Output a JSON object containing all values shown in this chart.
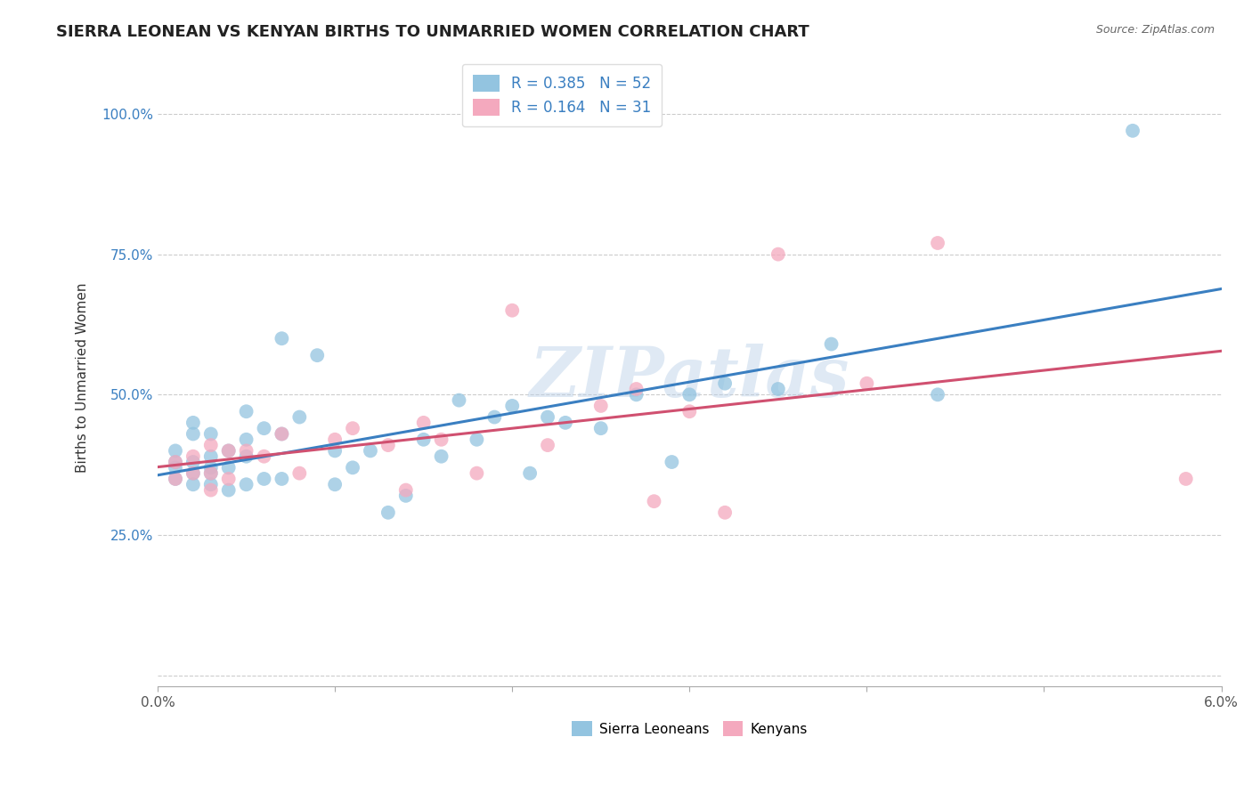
{
  "title": "SIERRA LEONEAN VS KENYAN BIRTHS TO UNMARRIED WOMEN CORRELATION CHART",
  "source": "Source: ZipAtlas.com",
  "ylabel": "Births to Unmarried Women",
  "xlabel": "",
  "xlim": [
    0.0,
    0.06
  ],
  "ylim": [
    -0.02,
    1.08
  ],
  "xticks": [
    0.0,
    0.01,
    0.02,
    0.03,
    0.04,
    0.05,
    0.06
  ],
  "xticklabels": [
    "0.0%",
    "",
    "",
    "",
    "",
    "",
    "6.0%"
  ],
  "yticks": [
    0.0,
    0.25,
    0.5,
    0.75,
    1.0
  ],
  "yticklabels": [
    "",
    "25.0%",
    "50.0%",
    "75.0%",
    "100.0%"
  ],
  "sierra_R": 0.385,
  "sierra_N": 52,
  "kenyan_R": 0.164,
  "kenyan_N": 31,
  "sierra_color": "#93C4E0",
  "kenyan_color": "#F4A9BE",
  "sierra_line_color": "#3a7fc1",
  "kenyan_line_color": "#d05070",
  "legend_text_color": "#3a7fc1",
  "watermark": "ZIPatlas",
  "sierra_x": [
    0.001,
    0.001,
    0.001,
    0.001,
    0.002,
    0.002,
    0.002,
    0.002,
    0.002,
    0.003,
    0.003,
    0.003,
    0.003,
    0.003,
    0.004,
    0.004,
    0.004,
    0.005,
    0.005,
    0.005,
    0.005,
    0.006,
    0.006,
    0.007,
    0.007,
    0.007,
    0.008,
    0.009,
    0.01,
    0.01,
    0.011,
    0.012,
    0.013,
    0.014,
    0.015,
    0.016,
    0.017,
    0.018,
    0.019,
    0.02,
    0.021,
    0.022,
    0.023,
    0.025,
    0.027,
    0.029,
    0.03,
    0.032,
    0.035,
    0.038,
    0.044,
    0.055
  ],
  "sierra_y": [
    0.35,
    0.37,
    0.38,
    0.4,
    0.34,
    0.36,
    0.38,
    0.43,
    0.45,
    0.34,
    0.36,
    0.37,
    0.39,
    0.43,
    0.33,
    0.37,
    0.4,
    0.34,
    0.39,
    0.42,
    0.47,
    0.35,
    0.44,
    0.35,
    0.43,
    0.6,
    0.46,
    0.57,
    0.34,
    0.4,
    0.37,
    0.4,
    0.29,
    0.32,
    0.42,
    0.39,
    0.49,
    0.42,
    0.46,
    0.48,
    0.36,
    0.46,
    0.45,
    0.44,
    0.5,
    0.38,
    0.5,
    0.52,
    0.51,
    0.59,
    0.5,
    0.97
  ],
  "kenyan_x": [
    0.001,
    0.001,
    0.002,
    0.002,
    0.003,
    0.003,
    0.003,
    0.004,
    0.004,
    0.005,
    0.006,
    0.007,
    0.008,
    0.01,
    0.011,
    0.013,
    0.014,
    0.015,
    0.016,
    0.018,
    0.02,
    0.022,
    0.025,
    0.027,
    0.028,
    0.03,
    0.032,
    0.035,
    0.04,
    0.044,
    0.058
  ],
  "kenyan_y": [
    0.35,
    0.38,
    0.36,
    0.39,
    0.33,
    0.36,
    0.41,
    0.35,
    0.4,
    0.4,
    0.39,
    0.43,
    0.36,
    0.42,
    0.44,
    0.41,
    0.33,
    0.45,
    0.42,
    0.36,
    0.65,
    0.41,
    0.48,
    0.51,
    0.31,
    0.47,
    0.29,
    0.75,
    0.52,
    0.77,
    0.35
  ],
  "title_fontsize": 13,
  "axis_label_fontsize": 11,
  "tick_fontsize": 11
}
